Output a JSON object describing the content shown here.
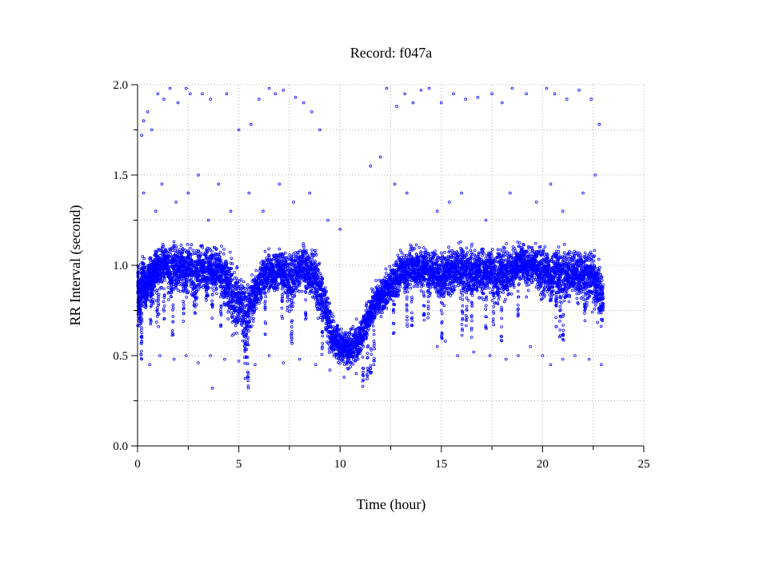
{
  "chart_data": {
    "type": "scatter",
    "title": "Record:  f047a",
    "xlabel": "Time (hour)",
    "ylabel": "RR Interval (second)",
    "xlim": [
      0,
      25
    ],
    "ylim": [
      0.0,
      2.0
    ],
    "x_ticks": [
      0,
      5,
      10,
      15,
      20,
      25
    ],
    "x_tick_labels": [
      "0",
      "5",
      "10",
      "15",
      "20",
      "25"
    ],
    "y_ticks": [
      0.0,
      0.5,
      1.0,
      1.5,
      2.0
    ],
    "y_tick_labels": [
      "0.0",
      "0.5",
      "1.0",
      "1.5",
      "2.0"
    ],
    "grid": true,
    "marker": "open-circle",
    "series": [
      {
        "color": "#0000ff",
        "x": [
          0.0,
          0.1,
          0.2,
          0.3,
          0.4,
          0.5,
          0.6,
          0.7,
          0.8,
          0.9,
          1.0,
          1.2,
          1.4,
          1.6,
          1.8,
          2.0,
          2.2,
          2.4,
          2.6,
          2.8,
          3.0,
          3.2,
          3.4,
          3.6,
          3.8,
          4.0,
          4.2,
          4.4,
          4.6,
          4.8,
          5.0,
          5.2,
          5.4,
          5.6,
          5.8,
          6.0,
          6.2,
          6.4,
          6.6,
          6.8,
          7.0,
          7.2,
          7.4,
          7.6,
          7.8,
          8.0,
          8.2,
          8.4,
          8.6,
          8.8,
          9.0,
          9.2,
          9.4,
          9.6,
          9.8,
          10.0,
          10.2,
          10.4,
          10.6,
          10.8,
          11.0,
          11.2,
          11.4,
          11.6,
          11.8,
          12.0,
          12.2,
          12.4,
          12.6,
          12.8,
          13.0,
          13.2,
          13.4,
          13.6,
          13.8,
          14.0,
          14.2,
          14.4,
          14.6,
          14.8,
          15.0,
          15.2,
          15.4,
          15.6,
          15.8,
          16.0,
          16.2,
          16.4,
          16.6,
          16.8,
          17.0,
          17.2,
          17.4,
          17.6,
          17.8,
          18.0,
          18.2,
          18.4,
          18.6,
          18.8,
          19.0,
          19.2,
          19.4,
          19.6,
          19.8,
          20.0,
          20.2,
          20.4,
          20.6,
          20.8,
          21.0,
          21.2,
          21.4,
          21.6,
          21.8,
          22.0,
          22.2,
          22.4,
          22.6,
          22.8,
          23.0
        ],
        "y": [
          0.85,
          0.8,
          0.88,
          0.92,
          0.85,
          0.9,
          0.95,
          0.9,
          0.93,
          0.98,
          0.97,
          1.0,
          1.02,
          0.95,
          1.0,
          0.98,
          1.0,
          0.95,
          1.02,
          0.9,
          0.98,
          1.0,
          0.95,
          1.0,
          0.96,
          0.98,
          0.92,
          0.9,
          0.85,
          0.8,
          0.82,
          0.75,
          0.7,
          0.78,
          0.85,
          0.9,
          0.93,
          0.95,
          0.97,
          0.95,
          1.0,
          0.96,
          0.92,
          0.9,
          0.95,
          0.98,
          1.0,
          0.97,
          0.95,
          0.92,
          0.85,
          0.8,
          0.7,
          0.62,
          0.58,
          0.55,
          0.56,
          0.52,
          0.55,
          0.58,
          0.6,
          0.66,
          0.7,
          0.75,
          0.8,
          0.82,
          0.85,
          0.88,
          0.9,
          0.92,
          0.98,
          0.96,
          0.98,
          1.0,
          0.97,
          0.98,
          1.0,
          0.95,
          0.97,
          0.95,
          0.92,
          0.95,
          0.97,
          0.95,
          1.0,
          0.96,
          0.98,
          0.95,
          0.95,
          0.97,
          0.95,
          0.96,
          0.98,
          0.95,
          0.93,
          0.98,
          0.95,
          0.97,
          0.98,
          1.0,
          1.02,
          0.97,
          1.0,
          1.0,
          0.98,
          0.95,
          0.96,
          0.92,
          0.98,
          0.95,
          0.93,
          0.95,
          0.96,
          0.97,
          0.93,
          0.95,
          0.92,
          0.95,
          0.9,
          0.85,
          0.8
        ],
        "y_spread": [
          0.18,
          0.15,
          0.12,
          0.12,
          0.12,
          0.1,
          0.1,
          0.12,
          0.12,
          0.1,
          0.12,
          0.12,
          0.1,
          0.15,
          0.12,
          0.12,
          0.12,
          0.15,
          0.1,
          0.2,
          0.12,
          0.1,
          0.15,
          0.1,
          0.12,
          0.12,
          0.15,
          0.15,
          0.18,
          0.18,
          0.15,
          0.18,
          0.2,
          0.15,
          0.12,
          0.12,
          0.12,
          0.12,
          0.1,
          0.12,
          0.1,
          0.12,
          0.15,
          0.15,
          0.12,
          0.12,
          0.1,
          0.12,
          0.12,
          0.15,
          0.15,
          0.15,
          0.15,
          0.12,
          0.1,
          0.1,
          0.1,
          0.1,
          0.1,
          0.1,
          0.1,
          0.1,
          0.1,
          0.1,
          0.1,
          0.1,
          0.1,
          0.1,
          0.1,
          0.12,
          0.1,
          0.12,
          0.12,
          0.1,
          0.12,
          0.12,
          0.1,
          0.15,
          0.12,
          0.12,
          0.15,
          0.12,
          0.12,
          0.12,
          0.1,
          0.15,
          0.12,
          0.15,
          0.15,
          0.12,
          0.15,
          0.12,
          0.12,
          0.15,
          0.15,
          0.12,
          0.15,
          0.12,
          0.12,
          0.1,
          0.1,
          0.12,
          0.1,
          0.1,
          0.12,
          0.15,
          0.12,
          0.15,
          0.12,
          0.15,
          0.15,
          0.15,
          0.12,
          0.12,
          0.15,
          0.12,
          0.15,
          0.15,
          0.15,
          0.15,
          0.12
        ],
        "outliers": [
          [
            0.2,
            1.72
          ],
          [
            0.3,
            1.8
          ],
          [
            0.5,
            1.85
          ],
          [
            0.7,
            1.75
          ],
          [
            1.0,
            1.95
          ],
          [
            1.3,
            1.92
          ],
          [
            1.6,
            1.98
          ],
          [
            2.0,
            1.9
          ],
          [
            2.4,
            1.98
          ],
          [
            2.6,
            1.95
          ],
          [
            3.2,
            1.95
          ],
          [
            3.6,
            1.92
          ],
          [
            4.4,
            1.95
          ],
          [
            5.0,
            1.75
          ],
          [
            5.6,
            1.78
          ],
          [
            6.0,
            1.92
          ],
          [
            6.5,
            1.98
          ],
          [
            6.8,
            1.95
          ],
          [
            7.2,
            1.97
          ],
          [
            7.8,
            1.93
          ],
          [
            8.2,
            1.9
          ],
          [
            8.6,
            1.85
          ],
          [
            9.0,
            1.75
          ],
          [
            12.3,
            1.98
          ],
          [
            12.8,
            1.88
          ],
          [
            13.2,
            1.95
          ],
          [
            13.6,
            1.9
          ],
          [
            14.0,
            1.97
          ],
          [
            14.4,
            1.98
          ],
          [
            15.0,
            1.9
          ],
          [
            15.6,
            1.95
          ],
          [
            16.2,
            1.92
          ],
          [
            16.8,
            1.93
          ],
          [
            17.5,
            1.95
          ],
          [
            18.0,
            1.9
          ],
          [
            18.5,
            1.98
          ],
          [
            19.2,
            1.95
          ],
          [
            20.2,
            1.98
          ],
          [
            20.6,
            1.95
          ],
          [
            21.2,
            1.92
          ],
          [
            21.8,
            1.97
          ],
          [
            22.4,
            1.92
          ],
          [
            22.8,
            1.78
          ],
          [
            0.3,
            1.4
          ],
          [
            0.9,
            1.3
          ],
          [
            1.2,
            1.45
          ],
          [
            1.9,
            1.35
          ],
          [
            2.5,
            1.4
          ],
          [
            3.0,
            1.5
          ],
          [
            3.5,
            1.25
          ],
          [
            4.0,
            1.45
          ],
          [
            4.6,
            1.3
          ],
          [
            5.5,
            1.4
          ],
          [
            6.2,
            1.3
          ],
          [
            7.0,
            1.45
          ],
          [
            7.7,
            1.35
          ],
          [
            8.5,
            1.4
          ],
          [
            9.4,
            1.25
          ],
          [
            10.0,
            1.2
          ],
          [
            11.5,
            1.55
          ],
          [
            12.0,
            1.6
          ],
          [
            12.7,
            1.45
          ],
          [
            13.3,
            1.4
          ],
          [
            14.8,
            1.3
          ],
          [
            15.4,
            1.35
          ],
          [
            16.0,
            1.4
          ],
          [
            17.2,
            1.25
          ],
          [
            18.4,
            1.4
          ],
          [
            19.7,
            1.35
          ],
          [
            20.4,
            1.45
          ],
          [
            21.0,
            1.3
          ],
          [
            22.0,
            1.4
          ],
          [
            22.6,
            1.5
          ],
          [
            0.2,
            0.48
          ],
          [
            0.6,
            0.45
          ],
          [
            1.1,
            0.5
          ],
          [
            1.8,
            0.48
          ],
          [
            2.4,
            0.5
          ],
          [
            3.0,
            0.46
          ],
          [
            3.6,
            0.5
          ],
          [
            3.7,
            0.32
          ],
          [
            4.3,
            0.48
          ],
          [
            5.0,
            0.47
          ],
          [
            5.8,
            0.45
          ],
          [
            6.5,
            0.5
          ],
          [
            7.2,
            0.46
          ],
          [
            8.0,
            0.48
          ],
          [
            8.8,
            0.45
          ],
          [
            9.5,
            0.42
          ],
          [
            10.2,
            0.38
          ],
          [
            10.8,
            0.4
          ],
          [
            11.4,
            0.42
          ],
          [
            14.8,
            0.55
          ],
          [
            15.2,
            0.58
          ],
          [
            15.8,
            0.5
          ],
          [
            16.6,
            0.52
          ],
          [
            17.4,
            0.5
          ],
          [
            18.2,
            0.48
          ],
          [
            18.8,
            0.5
          ],
          [
            19.4,
            0.55
          ],
          [
            20.0,
            0.5
          ],
          [
            20.4,
            0.45
          ],
          [
            21.0,
            0.48
          ],
          [
            21.6,
            0.5
          ],
          [
            22.3,
            0.48
          ],
          [
            22.9,
            0.45
          ]
        ]
      }
    ]
  }
}
